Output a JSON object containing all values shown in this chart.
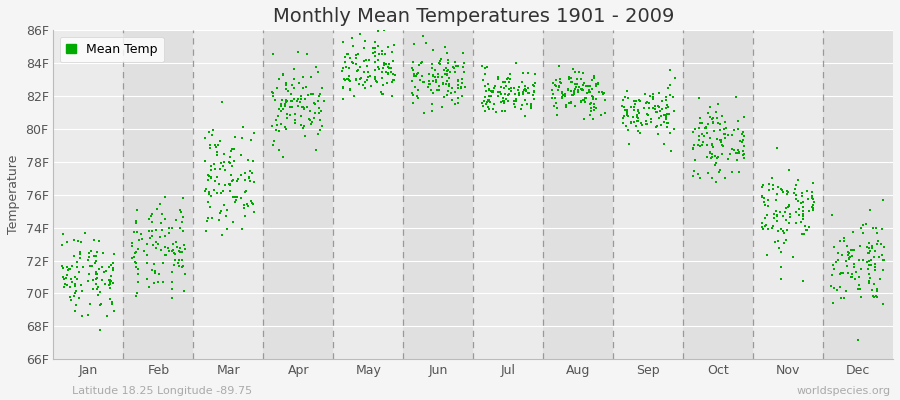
{
  "title": "Monthly Mean Temperatures 1901 - 2009",
  "ylabel": "Temperature",
  "xlabel_bottom_left": "Latitude 18.25 Longitude -89.75",
  "xlabel_bottom_right": "worldspecies.org",
  "legend_label": "Mean Temp",
  "marker_color": "#00aa00",
  "marker_size": 4,
  "years": 109,
  "start_year": 1901,
  "end_year": 2009,
  "months": [
    "Jan",
    "Feb",
    "Mar",
    "Apr",
    "May",
    "Jun",
    "Jul",
    "Aug",
    "Sep",
    "Oct",
    "Nov",
    "Dec"
  ],
  "mean_temps_f": [
    71.2,
    72.5,
    77.0,
    81.5,
    83.5,
    83.0,
    82.2,
    82.2,
    81.0,
    79.2,
    75.0,
    72.0
  ],
  "std_temps_f": [
    1.3,
    1.4,
    1.5,
    1.2,
    1.0,
    0.9,
    0.7,
    0.7,
    0.8,
    1.0,
    1.4,
    1.4
  ],
  "ylim_min": 66,
  "ylim_max": 86,
  "ytick_step": 2,
  "background_color": "#f5f5f5",
  "band_colors": [
    "#ebebeb",
    "#e0e0e0"
  ],
  "grid_color": "#ffffff",
  "dashed_line_color": "#999999",
  "title_fontsize": 14,
  "axis_fontsize": 9,
  "tick_fontsize": 9
}
